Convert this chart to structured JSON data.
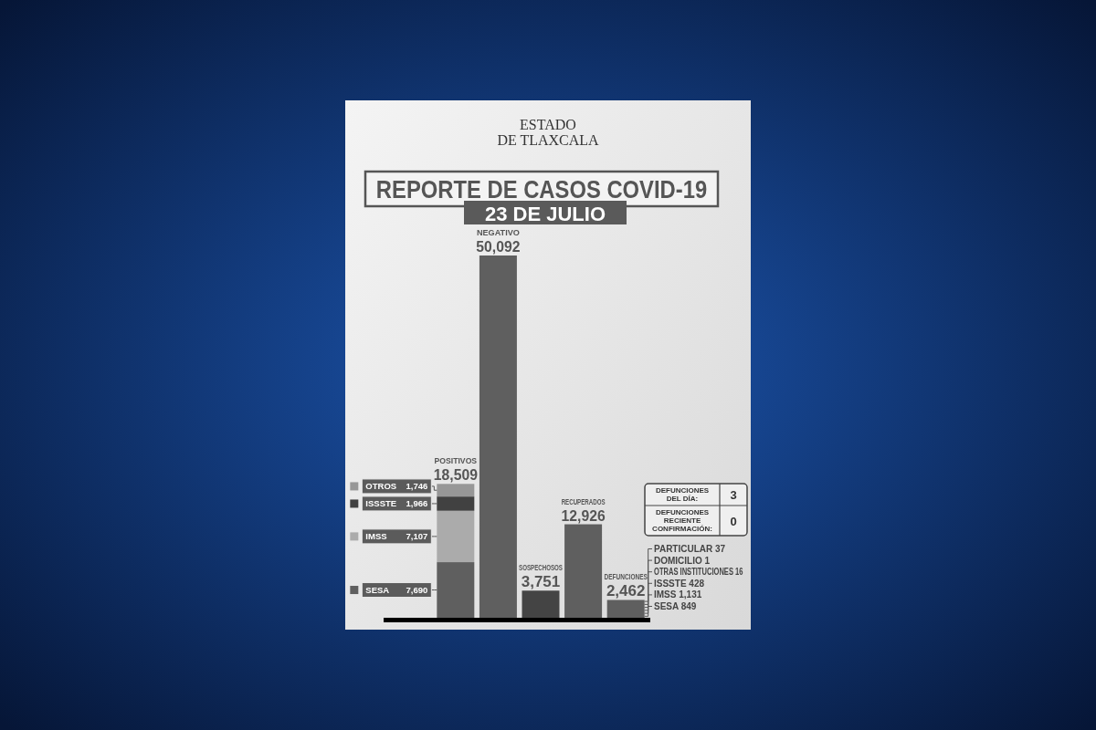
{
  "chart_data": {
    "type": "bar",
    "title": "REPORTE DE CASOS COVID-19",
    "subtitle": "23 DE JULIO",
    "categories": [
      "POSITIVOS",
      "NEGATIVO",
      "SOSPECHOSOS",
      "RECUPERADOS",
      "DEFUNCIONES"
    ],
    "stacked": true,
    "series": [
      {
        "name": "SESA",
        "color": "#5f5f5f",
        "values": [
          7690,
          null,
          null,
          null,
          null
        ],
        "value_labels": [
          "7,690",
          null,
          null,
          null,
          null
        ]
      },
      {
        "name": "IMSS",
        "color": "#ababab",
        "values": [
          7107,
          null,
          null,
          null,
          null
        ],
        "value_labels": [
          "7,107",
          null,
          null,
          null,
          null
        ]
      },
      {
        "name": "ISSSTE",
        "color": "#414141",
        "values": [
          1966,
          null,
          null,
          null,
          null
        ],
        "value_labels": [
          "1,966",
          null,
          null,
          null,
          null
        ]
      },
      {
        "name": "OTROS",
        "color": "#979797",
        "values": [
          1746,
          null,
          null,
          null,
          null
        ],
        "value_labels": [
          "1,746",
          null,
          null,
          null,
          null
        ]
      },
      {
        "color": "#5f5f5f",
        "colors": [
          null,
          null,
          "#444444",
          null,
          null
        ],
        "values": [
          null,
          50092,
          3751,
          12926,
          2462
        ],
        "value_labels": [
          null,
          "50,092",
          "3,751",
          "12,926",
          "2,462"
        ]
      }
    ],
    "totals": [
      "18,509",
      null,
      null,
      null,
      null
    ],
    "legend": "left",
    "annotations": [
      "ESTADO DE TLAXCALA",
      "DEFUNCIONES DEL DÍA:",
      "3",
      "DEFUNCIONES RECIENTE CONFIRMACIÓN:",
      "0",
      "PARTICULAR 37",
      "DOMICILIO 1",
      "OTRAS INSTITUCIONES 16",
      "ISSSTE 428",
      "IMSS 1,131",
      "SESA 849"
    ]
  }
}
